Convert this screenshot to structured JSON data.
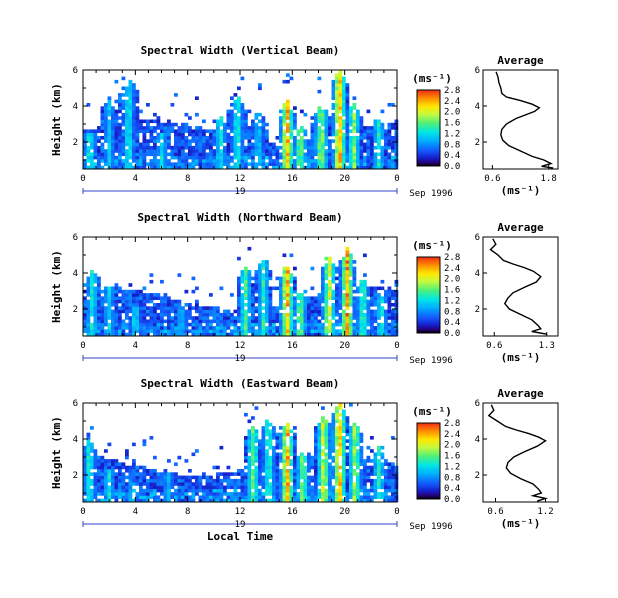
{
  "chart_data": [
    {
      "type": "heatmap",
      "title": "Spectral Width (Vertical Beam)",
      "ylabel": "Height (km)",
      "xlabel": "",
      "x_ticks": [
        "0",
        "4",
        "8",
        "12",
        "16",
        "20",
        "0"
      ],
      "y_ticks": [
        "2",
        "4",
        "6"
      ],
      "xlim": [
        0,
        24
      ],
      "ylim": [
        0.5,
        6.0
      ],
      "date_day": "19",
      "date_label": "Sep 1996",
      "colorbar_unit": "(ms⁻¹)",
      "colorbar_ticks": [
        "0.0",
        "0.4",
        "0.8",
        "1.2",
        "1.6",
        "2.0",
        "2.4",
        "2.8"
      ],
      "colorbar_range": [
        0.0,
        2.8
      ],
      "events": [
        [
          0.5,
          2.6,
          1.6
        ],
        [
          2.0,
          4.4,
          1.2
        ],
        [
          3.5,
          5.5,
          1.5
        ],
        [
          6.0,
          2.6,
          1.4
        ],
        [
          10.5,
          3.5,
          1.5
        ],
        [
          11.8,
          4.6,
          1.6
        ],
        [
          13.4,
          3.8,
          1.3
        ],
        [
          15.6,
          4.4,
          2.8
        ],
        [
          16.6,
          3.0,
          2.0
        ],
        [
          18.2,
          4.2,
          2.2
        ],
        [
          19.6,
          6.0,
          2.8
        ],
        [
          20.7,
          4.2,
          2.0
        ],
        [
          22.6,
          3.2,
          1.5
        ]
      ],
      "profile": {
        "title": "Average",
        "xlabel": "(ms⁻¹)",
        "x_ticks": [
          "0.6",
          "1.8"
        ],
        "xlim": [
          0.4,
          2.0
        ],
        "y_ticks": [
          "2",
          "4",
          "6"
        ],
        "ylim": [
          0.5,
          6.0
        ],
        "points": [
          [
            0.68,
            5.9
          ],
          [
            0.72,
            5.6
          ],
          [
            0.74,
            5.3
          ],
          [
            0.78,
            5.0
          ],
          [
            0.8,
            4.7
          ],
          [
            0.9,
            4.5
          ],
          [
            1.2,
            4.3
          ],
          [
            1.45,
            4.1
          ],
          [
            1.6,
            3.9
          ],
          [
            1.5,
            3.7
          ],
          [
            1.3,
            3.5
          ],
          [
            1.1,
            3.3
          ],
          [
            0.9,
            3.0
          ],
          [
            0.8,
            2.7
          ],
          [
            0.78,
            2.4
          ],
          [
            0.82,
            2.1
          ],
          [
            0.95,
            1.8
          ],
          [
            1.2,
            1.5
          ],
          [
            1.45,
            1.2
          ],
          [
            1.7,
            1.0
          ],
          [
            1.85,
            0.8
          ],
          [
            1.65,
            0.65
          ],
          [
            1.9,
            0.55
          ]
        ]
      }
    },
    {
      "type": "heatmap",
      "title": "Spectral Width (Northward Beam)",
      "ylabel": "Height (km)",
      "xlabel": "",
      "x_ticks": [
        "0",
        "4",
        "8",
        "12",
        "16",
        "20",
        "0"
      ],
      "y_ticks": [
        "2",
        "4",
        "6"
      ],
      "xlim": [
        0,
        24
      ],
      "ylim": [
        0.5,
        6.0
      ],
      "date_day": "19",
      "date_label": "Sep 1996",
      "colorbar_unit": "(ms⁻¹)",
      "colorbar_ticks": [
        "0.0",
        "0.4",
        "0.8",
        "1.2",
        "1.6",
        "2.0",
        "2.4",
        "2.8"
      ],
      "colorbar_range": [
        0.0,
        2.8
      ],
      "events": [
        [
          0.7,
          4.2,
          1.5
        ],
        [
          2.0,
          3.2,
          1.3
        ],
        [
          4.0,
          2.2,
          1.4
        ],
        [
          7.5,
          2.0,
          1.2
        ],
        [
          12.4,
          4.4,
          1.8
        ],
        [
          13.8,
          4.8,
          1.6
        ],
        [
          15.6,
          4.4,
          2.8
        ],
        [
          16.6,
          3.0,
          2.0
        ],
        [
          18.8,
          5.0,
          2.4
        ],
        [
          20.2,
          5.4,
          2.8
        ],
        [
          21.4,
          3.8,
          1.8
        ],
        [
          22.8,
          3.0,
          1.5
        ]
      ],
      "profile": {
        "title": "Average",
        "xlabel": "(ms⁻¹)",
        "x_ticks": [
          "0.6",
          "1.3"
        ],
        "xlim": [
          0.45,
          1.45
        ],
        "y_ticks": [
          "2",
          "4",
          "6"
        ],
        "ylim": [
          0.5,
          6.0
        ],
        "points": [
          [
            0.58,
            5.9
          ],
          [
            0.62,
            5.6
          ],
          [
            0.55,
            5.3
          ],
          [
            0.65,
            5.0
          ],
          [
            0.72,
            4.7
          ],
          [
            0.85,
            4.5
          ],
          [
            1.0,
            4.3
          ],
          [
            1.12,
            4.1
          ],
          [
            1.22,
            3.8
          ],
          [
            1.16,
            3.5
          ],
          [
            1.0,
            3.2
          ],
          [
            0.85,
            2.9
          ],
          [
            0.78,
            2.6
          ],
          [
            0.74,
            2.3
          ],
          [
            0.8,
            2.0
          ],
          [
            0.95,
            1.7
          ],
          [
            1.1,
            1.4
          ],
          [
            1.18,
            1.1
          ],
          [
            1.22,
            0.9
          ],
          [
            1.1,
            0.75
          ],
          [
            1.3,
            0.6
          ]
        ]
      }
    },
    {
      "type": "heatmap",
      "title": "Spectral Width (Eastward Beam)",
      "ylabel": "Height (km)",
      "xlabel": "Local Time",
      "x_ticks": [
        "0",
        "4",
        "8",
        "12",
        "16",
        "20",
        "0"
      ],
      "y_ticks": [
        "2",
        "4",
        "6"
      ],
      "xlim": [
        0,
        24
      ],
      "ylim": [
        0.5,
        6.0
      ],
      "date_day": "19",
      "date_label": "Sep 1996",
      "colorbar_unit": "(ms⁻¹)",
      "colorbar_ticks": [
        "0.0",
        "0.4",
        "0.8",
        "1.2",
        "1.6",
        "2.0",
        "2.4",
        "2.8"
      ],
      "colorbar_range": [
        0.0,
        2.8
      ],
      "events": [
        [
          0.5,
          4.0,
          1.6
        ],
        [
          2.0,
          2.4,
          1.4
        ],
        [
          3.8,
          1.6,
          1.3
        ],
        [
          6.5,
          2.2,
          1.2
        ],
        [
          13.0,
          4.8,
          1.9
        ],
        [
          14.2,
          5.2,
          1.7
        ],
        [
          15.6,
          5.0,
          2.8
        ],
        [
          16.8,
          3.4,
          2.0
        ],
        [
          18.4,
          5.4,
          2.4
        ],
        [
          19.6,
          6.0,
          2.8
        ],
        [
          20.8,
          5.0,
          2.2
        ],
        [
          22.6,
          3.6,
          1.6
        ]
      ],
      "profile": {
        "title": "Average",
        "xlabel": "(ms⁻¹)",
        "x_ticks": [
          "0.6",
          "1.2"
        ],
        "xlim": [
          0.45,
          1.35
        ],
        "y_ticks": [
          "2",
          "4",
          "6"
        ],
        "ylim": [
          0.5,
          6.0
        ],
        "points": [
          [
            0.55,
            5.9
          ],
          [
            0.58,
            5.6
          ],
          [
            0.52,
            5.3
          ],
          [
            0.62,
            5.0
          ],
          [
            0.72,
            4.7
          ],
          [
            0.85,
            4.5
          ],
          [
            1.0,
            4.3
          ],
          [
            1.12,
            4.1
          ],
          [
            1.2,
            3.9
          ],
          [
            1.1,
            3.6
          ],
          [
            0.95,
            3.3
          ],
          [
            0.82,
            3.0
          ],
          [
            0.75,
            2.7
          ],
          [
            0.73,
            2.4
          ],
          [
            0.78,
            2.1
          ],
          [
            0.9,
            1.8
          ],
          [
            1.05,
            1.5
          ],
          [
            1.12,
            1.2
          ],
          [
            1.15,
            1.0
          ],
          [
            1.05,
            0.85
          ],
          [
            1.2,
            0.7
          ],
          [
            1.1,
            0.55
          ]
        ]
      }
    }
  ]
}
